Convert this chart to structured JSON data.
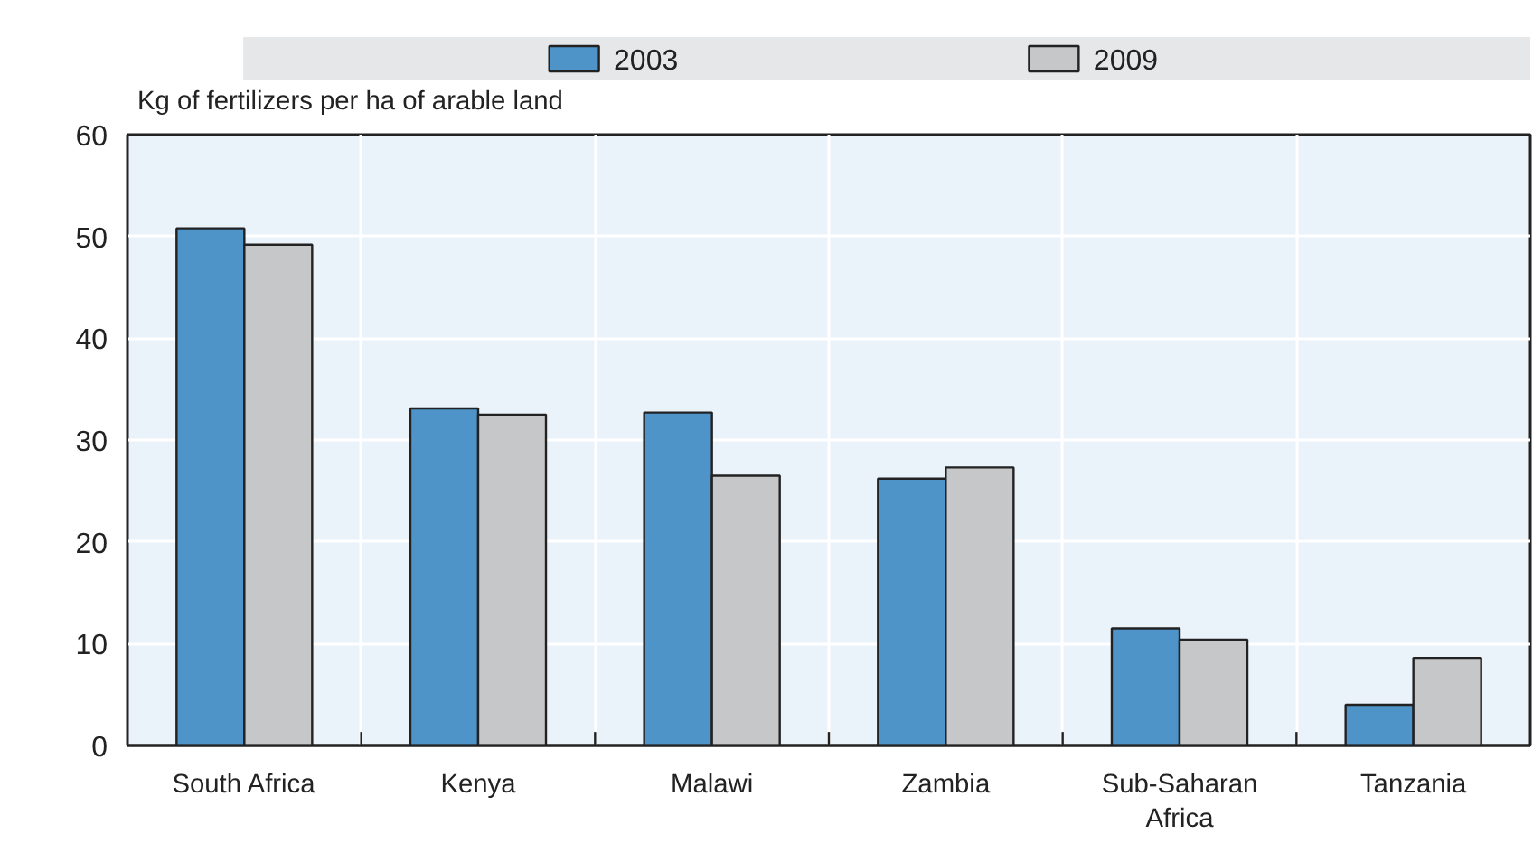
{
  "chart_data": {
    "type": "bar",
    "ylabel": "Kg of fertilizers per ha of arable land",
    "categories": [
      "South Africa",
      "Kenya",
      "Malawi",
      "Zambia",
      "Sub-Saharan Africa",
      "Tanzania"
    ],
    "series": [
      {
        "name": "2003",
        "color": "#4e94c8",
        "values": [
          50.8,
          33.1,
          32.7,
          26.2,
          11.5,
          4.0
        ]
      },
      {
        "name": "2009",
        "color": "#c6c7c9",
        "values": [
          49.2,
          32.5,
          26.5,
          27.3,
          10.4,
          8.6
        ]
      }
    ],
    "ylim": [
      0,
      60
    ],
    "yticks": [
      0,
      10,
      20,
      30,
      40,
      50,
      60
    ],
    "grid": true,
    "legend": "top"
  }
}
